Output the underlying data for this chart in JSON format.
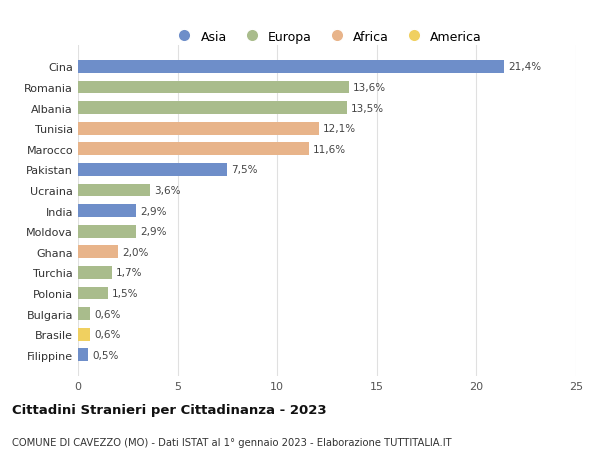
{
  "countries": [
    "Cina",
    "Romania",
    "Albania",
    "Tunisia",
    "Marocco",
    "Pakistan",
    "Ucraina",
    "India",
    "Moldova",
    "Ghana",
    "Turchia",
    "Polonia",
    "Bulgaria",
    "Brasile",
    "Filippine"
  ],
  "values": [
    21.4,
    13.6,
    13.5,
    12.1,
    11.6,
    7.5,
    3.6,
    2.9,
    2.9,
    2.0,
    1.7,
    1.5,
    0.6,
    0.6,
    0.5
  ],
  "labels": [
    "21,4%",
    "13,6%",
    "13,5%",
    "12,1%",
    "11,6%",
    "7,5%",
    "3,6%",
    "2,9%",
    "2,9%",
    "2,0%",
    "1,7%",
    "1,5%",
    "0,6%",
    "0,6%",
    "0,5%"
  ],
  "continents": [
    "Asia",
    "Europa",
    "Europa",
    "Africa",
    "Africa",
    "Asia",
    "Europa",
    "Asia",
    "Europa",
    "Africa",
    "Europa",
    "Europa",
    "Europa",
    "America",
    "Asia"
  ],
  "colors": {
    "Asia": "#6e8ec9",
    "Europa": "#a9bc8c",
    "Africa": "#e8b48a",
    "America": "#f0d060"
  },
  "title": "Cittadini Stranieri per Cittadinanza - 2023",
  "subtitle": "COMUNE DI CAVEZZO (MO) - Dati ISTAT al 1° gennaio 2023 - Elaborazione TUTTITALIA.IT",
  "xlim": [
    0,
    25
  ],
  "xticks": [
    0,
    5,
    10,
    15,
    20,
    25
  ],
  "background_color": "#ffffff",
  "grid_color": "#e0e0e0",
  "legend_order": [
    "Asia",
    "Europa",
    "Africa",
    "America"
  ]
}
